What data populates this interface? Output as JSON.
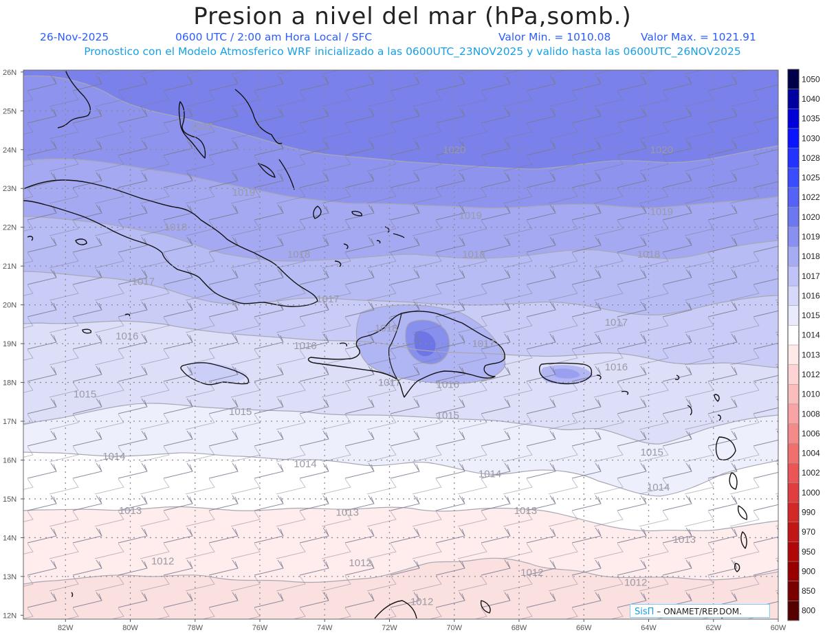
{
  "title": "Presion a nivel del mar (hPa,somb.)",
  "info": {
    "date": "26-Nov-2025",
    "time": "0600 UTC / 2:00 am Hora Local / SFC",
    "min": "Valor Min. = 1010.08",
    "max": "Valor Max. = 1021.91"
  },
  "subtitle": "Pronostico con el Modelo Atmosferico WRF inicializado a las 0600UTC_23NOV2025 y valido hasta las  0600UTC_26NOV2025",
  "credit": {
    "logo": "SisΠ",
    "org": "– ONAMET/REP.DOM."
  },
  "lat_labels": [
    "26N",
    "25N",
    "24N",
    "23N",
    "22N",
    "21N",
    "20N",
    "19N",
    "18N",
    "17N",
    "16N",
    "15N",
    "14N",
    "13N",
    "12N"
  ],
  "lon_labels": [
    "82W",
    "80W",
    "78W",
    "76W",
    "74W",
    "72W",
    "70W",
    "68W",
    "66W",
    "64W",
    "62W",
    "60W"
  ],
  "colorbar": {
    "labels": [
      "1050",
      "1040",
      "1035",
      "1030",
      "1028",
      "1025",
      "1022",
      "1020",
      "1019",
      "1018",
      "1017",
      "1016",
      "1015",
      "1014",
      "1013",
      "1012",
      "1010",
      "1008",
      "1006",
      "1004",
      "1002",
      "1000",
      "990",
      "970",
      "950",
      "900",
      "850",
      "800"
    ],
    "colors": [
      "#00004a",
      "#0000a0",
      "#0000d8",
      "#0a14ff",
      "#2233ff",
      "#3a4cff",
      "#5463f5",
      "#6b78f0",
      "#8890f2",
      "#a5acf4",
      "#bfc3f7",
      "#d6d8fa",
      "#e9eafc",
      "#ffffff",
      "#ffe8e8",
      "#fdd3d3",
      "#fbbcbc",
      "#f8a4a4",
      "#f58a8a",
      "#f07070",
      "#ea5656",
      "#e03e3e",
      "#d32828",
      "#c21515",
      "#b00808",
      "#980000",
      "#7a0000",
      "#560000"
    ]
  },
  "contour_labels": [
    {
      "v": "1020",
      "lon": -77.8,
      "lat": 24.6
    },
    {
      "v": "1020",
      "lon": -70.0,
      "lat": 24.0
    },
    {
      "v": "1020",
      "lon": -63.6,
      "lat": 24.0
    },
    {
      "v": "1019",
      "lon": -76.5,
      "lat": 22.9
    },
    {
      "v": "1019",
      "lon": -69.5,
      "lat": 22.3
    },
    {
      "v": "1019",
      "lon": -63.6,
      "lat": 22.4
    },
    {
      "v": "1018",
      "lon": -78.6,
      "lat": 22.0
    },
    {
      "v": "1018",
      "lon": -74.8,
      "lat": 21.3
    },
    {
      "v": "1018",
      "lon": -69.4,
      "lat": 21.3
    },
    {
      "v": "1018",
      "lon": -64.0,
      "lat": 21.3
    },
    {
      "v": "1018",
      "lon": -72.1,
      "lat": 19.4
    },
    {
      "v": "1017",
      "lon": -79.6,
      "lat": 20.6
    },
    {
      "v": "1017",
      "lon": -73.9,
      "lat": 20.15
    },
    {
      "v": "1017",
      "lon": -65.0,
      "lat": 19.55
    },
    {
      "v": "1017",
      "lon": -69.1,
      "lat": 19.0
    },
    {
      "v": "1017",
      "lon": -72.0,
      "lat": 18.0
    },
    {
      "v": "1016",
      "lon": -80.1,
      "lat": 19.2
    },
    {
      "v": "1016",
      "lon": -74.6,
      "lat": 18.95
    },
    {
      "v": "1016",
      "lon": -70.2,
      "lat": 17.95
    },
    {
      "v": "1016",
      "lon": -65.0,
      "lat": 18.4
    },
    {
      "v": "1015",
      "lon": -81.4,
      "lat": 17.7
    },
    {
      "v": "1015",
      "lon": -76.6,
      "lat": 17.25
    },
    {
      "v": "1015",
      "lon": -70.2,
      "lat": 17.15
    },
    {
      "v": "1015",
      "lon": -63.9,
      "lat": 16.2
    },
    {
      "v": "1014",
      "lon": -80.5,
      "lat": 16.1
    },
    {
      "v": "1014",
      "lon": -74.6,
      "lat": 15.9
    },
    {
      "v": "1014",
      "lon": -68.9,
      "lat": 15.65
    },
    {
      "v": "1014",
      "lon": -63.7,
      "lat": 15.3
    },
    {
      "v": "1013",
      "lon": -80.0,
      "lat": 14.7
    },
    {
      "v": "1013",
      "lon": -73.3,
      "lat": 14.65
    },
    {
      "v": "1013",
      "lon": -67.8,
      "lat": 14.7
    },
    {
      "v": "1013",
      "lon": -62.9,
      "lat": 13.95
    },
    {
      "v": "1012",
      "lon": -79.0,
      "lat": 13.4
    },
    {
      "v": "1012",
      "lon": -72.9,
      "lat": 13.35
    },
    {
      "v": "1012",
      "lon": -67.6,
      "lat": 13.1
    },
    {
      "v": "1012",
      "lon": -64.4,
      "lat": 12.85
    },
    {
      "v": "1012",
      "lon": -71.0,
      "lat": 12.35
    }
  ]
}
